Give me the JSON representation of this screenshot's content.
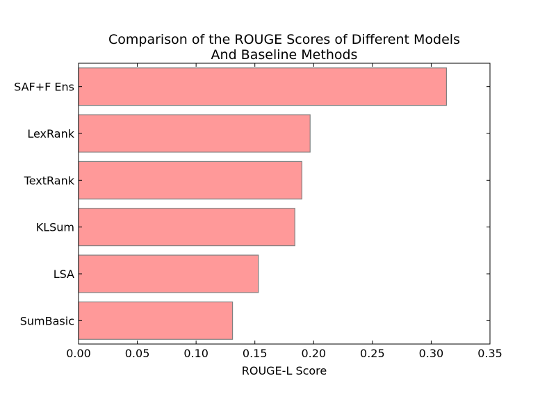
{
  "chart_data": {
    "type": "bar",
    "orientation": "horizontal",
    "title_lines": [
      "Comparison of the ROUGE Scores of Different Models",
      "And Baseline Methods"
    ],
    "xlabel": "ROUGE-L Score",
    "ylabel": "",
    "categories": [
      "SAF+F Ens",
      "LexRank",
      "TextRank",
      "KLSum",
      "LSA",
      "SumBasic"
    ],
    "values": [
      0.313,
      0.197,
      0.19,
      0.184,
      0.153,
      0.131
    ],
    "xlim": [
      0.0,
      0.35
    ],
    "xticks": [
      "0.00",
      "0.05",
      "0.10",
      "0.15",
      "0.20",
      "0.25",
      "0.30",
      "0.35"
    ],
    "grid": false,
    "legend": "none",
    "bar_color": "#ff9999",
    "bar_edge_color": "#808080"
  }
}
